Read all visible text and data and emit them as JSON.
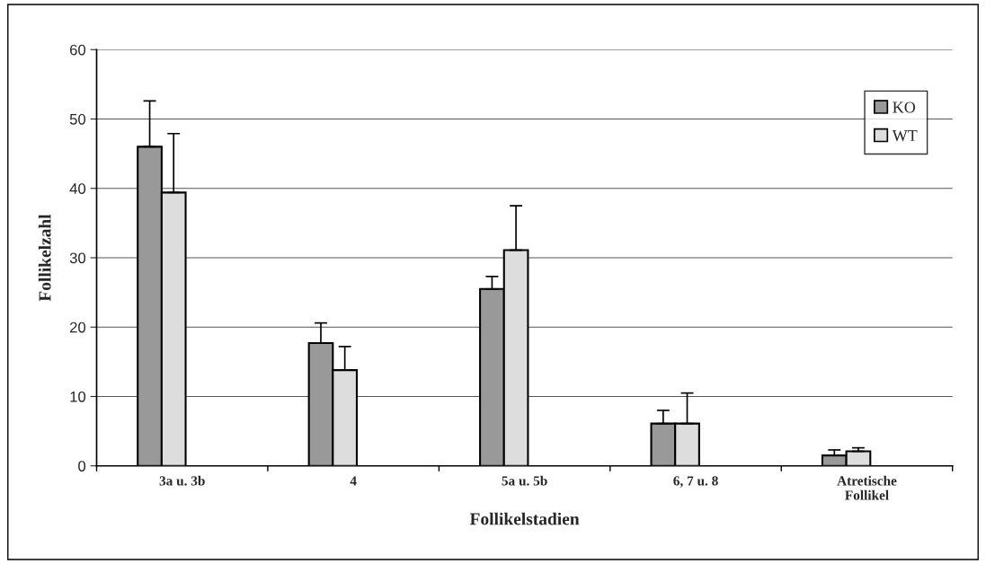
{
  "chart_data": {
    "type": "bar",
    "xlabel": "Follikelstadien",
    "ylabel": "Follikelzahl",
    "categories": [
      "3a u. 3b",
      "4",
      "5a u. 5b",
      "6, 7 u. 8",
      "Atretische\nFollikel"
    ],
    "series": [
      {
        "name": "KO",
        "color": "#999999",
        "values": [
          46.0,
          17.7,
          25.5,
          6.1,
          1.5
        ],
        "errors": [
          [
            46.0,
            52.6
          ],
          [
            17.7,
            20.6
          ],
          [
            25.5,
            27.3
          ],
          [
            6.1,
            8.0
          ],
          [
            1.5,
            2.3
          ]
        ]
      },
      {
        "name": "WT",
        "color": "#dddddd",
        "values": [
          39.4,
          13.8,
          31.1,
          6.1,
          2.1
        ],
        "errors": [
          [
            39.4,
            47.9
          ],
          [
            13.8,
            17.2
          ],
          [
            31.1,
            37.5
          ],
          [
            6.1,
            10.5
          ],
          [
            2.1,
            2.6
          ]
        ]
      }
    ],
    "ylim": [
      0,
      60
    ],
    "yticks": [
      0,
      10,
      20,
      30,
      40,
      50,
      60
    ],
    "grid": "y",
    "legend": "top right"
  }
}
